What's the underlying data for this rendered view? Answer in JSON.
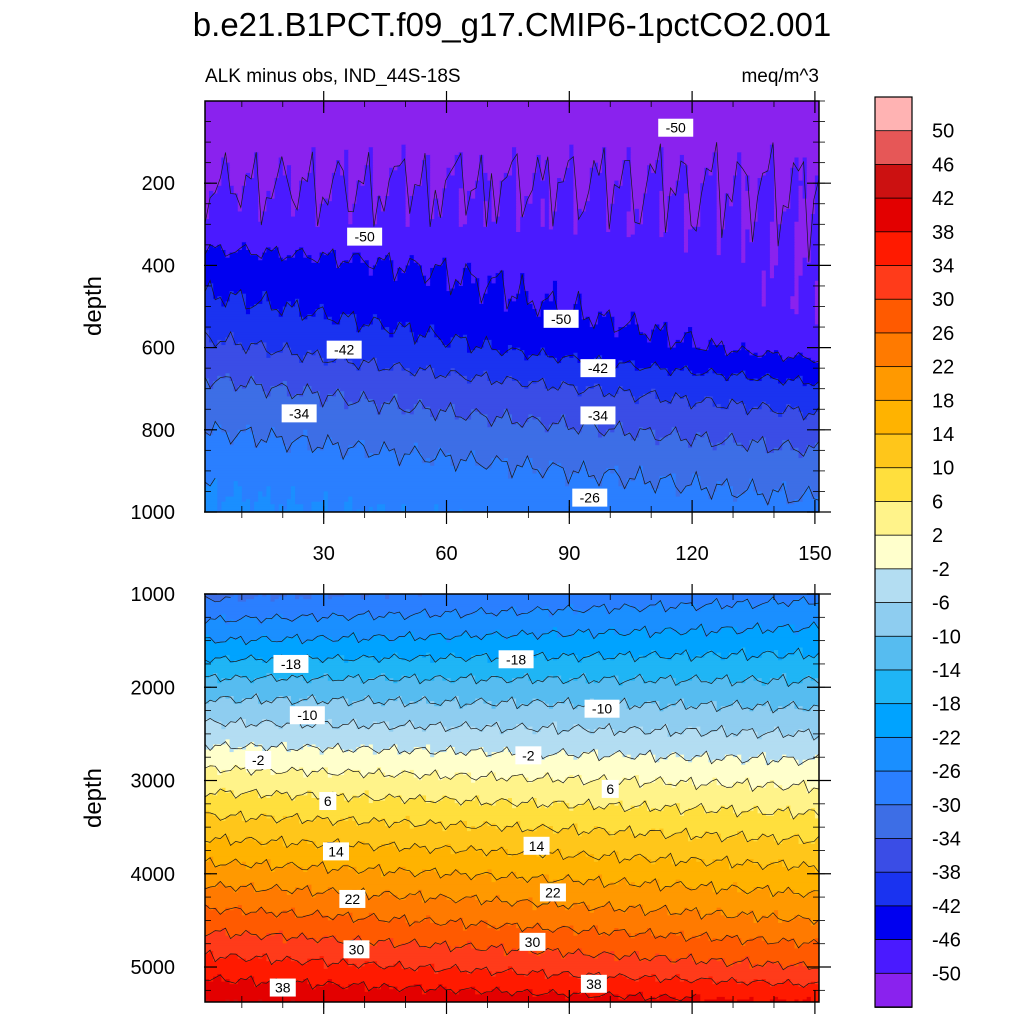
{
  "title": "b.e21.B1PCT.f09_g17.CMIP6-1pctCO2.001",
  "chart_data": [
    {
      "type": "heatmap",
      "panel": "upper",
      "subtitle_left": "ALK minus obs, IND_44S-18S",
      "subtitle_right": "meq/m^3",
      "xlabel": "",
      "ylabel": "depth",
      "xlim": [
        1,
        151
      ],
      "ylim": [
        0,
        1000
      ],
      "y_reversed": true,
      "xticks": [
        30,
        60,
        90,
        120,
        150
      ],
      "yticks": [
        200,
        400,
        600,
        800,
        1000
      ],
      "profile_x": [
        1,
        151
      ],
      "profile_depth": [
        0,
        100,
        200,
        300,
        400,
        500,
        600,
        700,
        800,
        900,
        1000
      ],
      "profile_values": [
        [
          -51,
          -51,
          -50,
          -49,
          -44,
          -41,
          -37,
          -33,
          -30,
          -27,
          -25
        ],
        [
          -51,
          -51,
          -50,
          -50,
          -50,
          -50,
          -48,
          -41,
          -36,
          -32,
          -29
        ]
      ],
      "contour_labels": [
        {
          "text": "-50",
          "x": 116,
          "depth": 65
        },
        {
          "text": "-50",
          "x": 40,
          "depth": 330
        },
        {
          "text": "-50",
          "x": 88,
          "depth": 530
        },
        {
          "text": "-42",
          "x": 35,
          "depth": 605
        },
        {
          "text": "-42",
          "x": 97,
          "depth": 650
        },
        {
          "text": "-34",
          "x": 24,
          "depth": 760
        },
        {
          "text": "-34",
          "x": 97,
          "depth": 765
        },
        {
          "text": "-26",
          "x": 95,
          "depth": 965
        }
      ]
    },
    {
      "type": "heatmap",
      "panel": "lower",
      "xlabel": "",
      "ylabel": "depth",
      "xlim": [
        1,
        151
      ],
      "ylim": [
        1000,
        5375
      ],
      "y_reversed": true,
      "yticks": [
        1000,
        2000,
        3000,
        4000,
        5000
      ],
      "profile_x": [
        1,
        151
      ],
      "profile_depth": [
        1000,
        1500,
        2000,
        2500,
        3000,
        3500,
        4000,
        4500,
        5000,
        5375
      ],
      "profile_values": [
        [
          -31,
          -22,
          -12,
          -4,
          4,
          12,
          20,
          28,
          36,
          42
        ],
        [
          -27,
          -20,
          -13,
          -6,
          1,
          8,
          15,
          22,
          30,
          38
        ]
      ],
      "contour_labels": [
        {
          "text": "-18",
          "x": 22,
          "depth": 1750
        },
        {
          "text": "-18",
          "x": 77,
          "depth": 1700
        },
        {
          "text": "-10",
          "x": 26,
          "depth": 2300
        },
        {
          "text": "-10",
          "x": 98,
          "depth": 2230
        },
        {
          "text": "-2",
          "x": 14,
          "depth": 2780
        },
        {
          "text": "-2",
          "x": 80,
          "depth": 2730
        },
        {
          "text": "6",
          "x": 31,
          "depth": 3220
        },
        {
          "text": "6",
          "x": 100,
          "depth": 3090
        },
        {
          "text": "14",
          "x": 33,
          "depth": 3760
        },
        {
          "text": "14",
          "x": 82,
          "depth": 3700
        },
        {
          "text": "22",
          "x": 37,
          "depth": 4270
        },
        {
          "text": "22",
          "x": 86,
          "depth": 4200
        },
        {
          "text": "30",
          "x": 38,
          "depth": 4810
        },
        {
          "text": "30",
          "x": 81,
          "depth": 4730
        },
        {
          "text": "38",
          "x": 20,
          "depth": 5220
        },
        {
          "text": "38",
          "x": 96,
          "depth": 5180
        }
      ]
    }
  ],
  "colorbar": {
    "levels": [
      50,
      46,
      42,
      38,
      34,
      30,
      26,
      22,
      18,
      14,
      10,
      6,
      2,
      -2,
      -6,
      -10,
      -14,
      -18,
      -22,
      -26,
      -30,
      -34,
      -38,
      -42,
      -46,
      -50
    ],
    "labels": [
      "50",
      "46",
      "42",
      "38",
      "34",
      "30",
      "26",
      "22",
      "18",
      "14",
      "10",
      "6",
      "2",
      "-2",
      "-6",
      "-10",
      "-14",
      "-18",
      "-22",
      "-26",
      "-30",
      "-34",
      "-38",
      "-42",
      "-46",
      "-50"
    ],
    "colors": [
      "#ffb3b3",
      "#e65757",
      "#cc1111",
      "#e30000",
      "#ff1a00",
      "#ff3b1a",
      "#ff5a00",
      "#ff7a00",
      "#ff9900",
      "#ffb300",
      "#ffc61a",
      "#ffdf3d",
      "#fff38a",
      "#ffffcc",
      "#b3ddf2",
      "#8ecdf0",
      "#56bcf0",
      "#1fb5f5",
      "#00a3ff",
      "#1a8fff",
      "#2a7fff",
      "#3d6ee6",
      "#3a4de6",
      "#1a33f0",
      "#0000f0",
      "#4a1aff",
      "#8a22ee"
    ]
  }
}
